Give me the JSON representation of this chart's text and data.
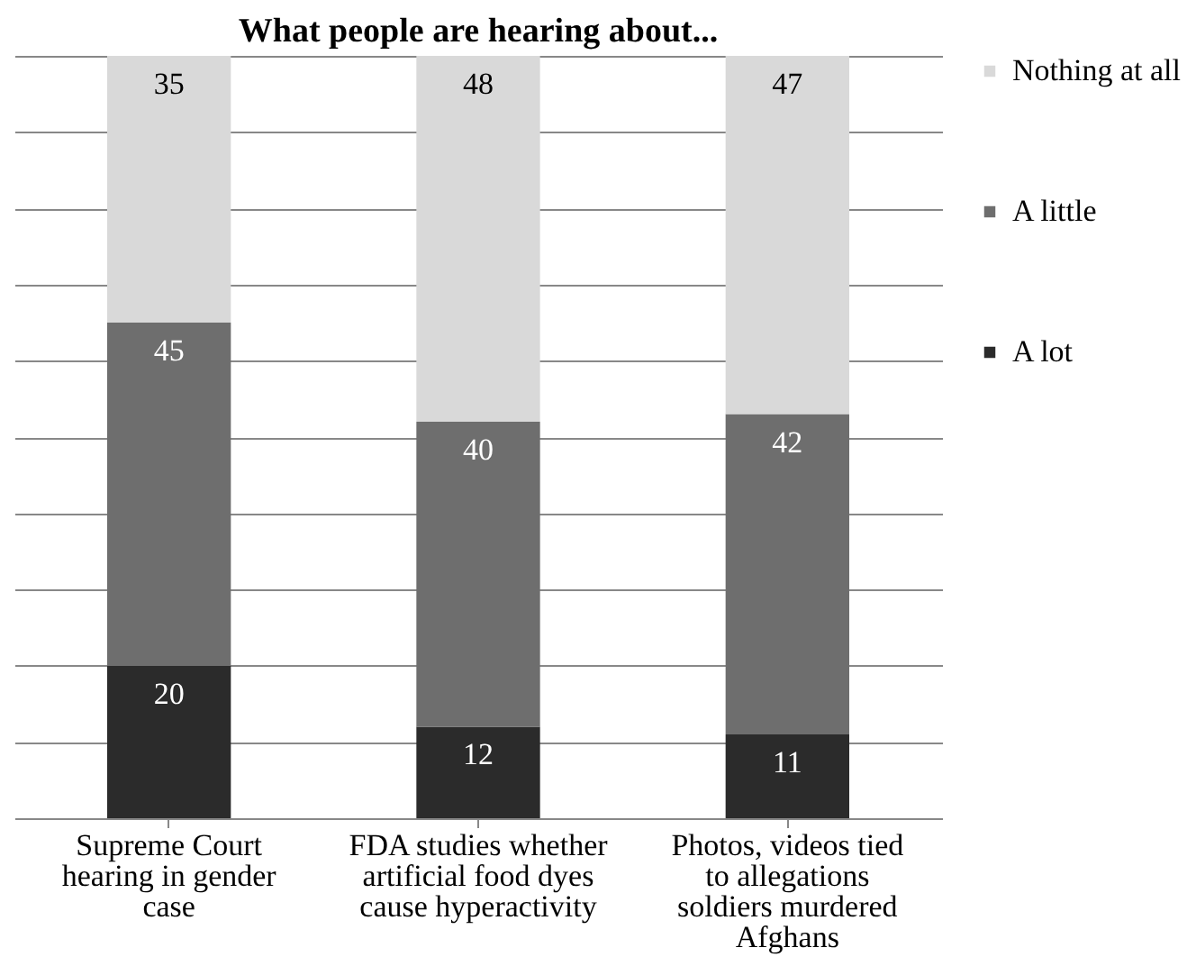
{
  "chart_data": {
    "type": "bar",
    "title": "What people are hearing about...",
    "categories": [
      "Supreme Court hearing in gender case",
      "FDA studies whether artificial food dyes cause hyperactivity",
      "Photos, videos tied to allegations soldiers murdered Afghans"
    ],
    "series": [
      {
        "name": "A lot",
        "color": "#2b2b2b",
        "values": [
          20,
          12,
          11
        ]
      },
      {
        "name": "A little",
        "color": "#6e6e6e",
        "values": [
          45,
          40,
          42
        ]
      },
      {
        "name": "Nothing at all",
        "color": "#d9d9d9",
        "values": [
          35,
          48,
          47
        ]
      }
    ],
    "stacked": true,
    "data_labels": true,
    "ylim": [
      0,
      100
    ],
    "yticks": [
      0,
      10,
      20,
      30,
      40,
      50,
      60,
      70,
      80,
      90,
      100
    ],
    "tick_labels": "x",
    "grid": "y",
    "legend": "right"
  }
}
